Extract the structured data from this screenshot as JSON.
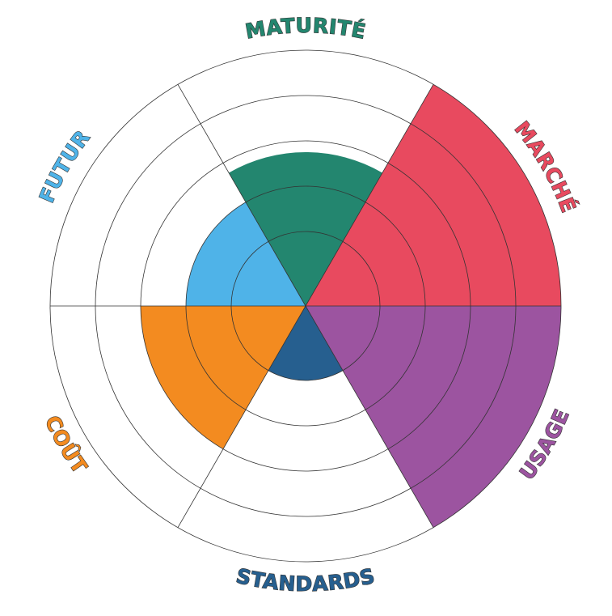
{
  "chart_data": {
    "type": "polar-area",
    "categories": [
      "MATURITÉ",
      "MARCHÉ",
      "USAGE",
      "STANDARDS",
      "COÛT",
      "FUTUR"
    ],
    "values": [
      2.75,
      5,
      5,
      1,
      3,
      2
    ],
    "colors": [
      "#23866f",
      "#e84a5f",
      "#9c54a0",
      "#265f8f",
      "#f38b20",
      "#4fb3e8"
    ],
    "rlim": [
      0,
      5
    ],
    "rticks": [
      1,
      2,
      3,
      4,
      5
    ],
    "grid": true
  }
}
